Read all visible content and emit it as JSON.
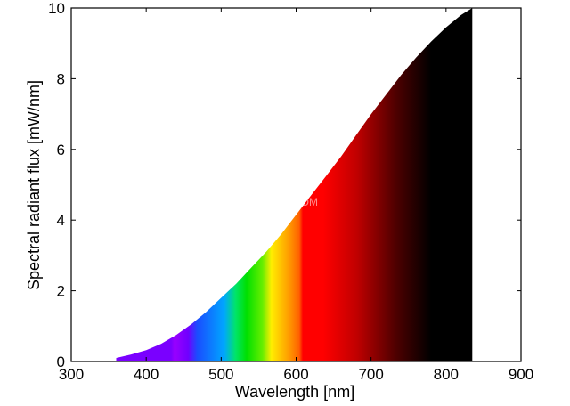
{
  "chart_data": {
    "type": "area",
    "title": "",
    "xlabel": "Wavelength [nm]",
    "ylabel": "Spectral radiant flux [mW/nm]",
    "xlim": [
      300,
      900
    ],
    "ylim": [
      0,
      10
    ],
    "x_ticks": [
      "300",
      "400",
      "500",
      "600",
      "700",
      "800",
      "900"
    ],
    "y_ticks": [
      "0",
      "2",
      "4",
      "6",
      "8",
      "10"
    ],
    "grid": false,
    "watermark": "www.***.COM",
    "series": [
      {
        "x": [
          360,
          380,
          400,
          420,
          440,
          460,
          480,
          500,
          520,
          540,
          560,
          580,
          600,
          620,
          640,
          660,
          680,
          700,
          720,
          740,
          760,
          780,
          800,
          820,
          835
        ],
        "values": [
          0.1,
          0.2,
          0.32,
          0.5,
          0.75,
          1.05,
          1.4,
          1.8,
          2.2,
          2.65,
          3.1,
          3.6,
          4.15,
          4.7,
          5.25,
          5.8,
          6.4,
          7.0,
          7.55,
          8.1,
          8.6,
          9.05,
          9.45,
          9.8,
          10.0
        ]
      }
    ],
    "fill_colors": {
      "violet": "#7a00ff",
      "blue": "#1a4dff",
      "green": "#00e000",
      "yellow": "#ffee00",
      "orange": "#ff9900",
      "red": "#ff0000",
      "dark": "#000000"
    }
  }
}
